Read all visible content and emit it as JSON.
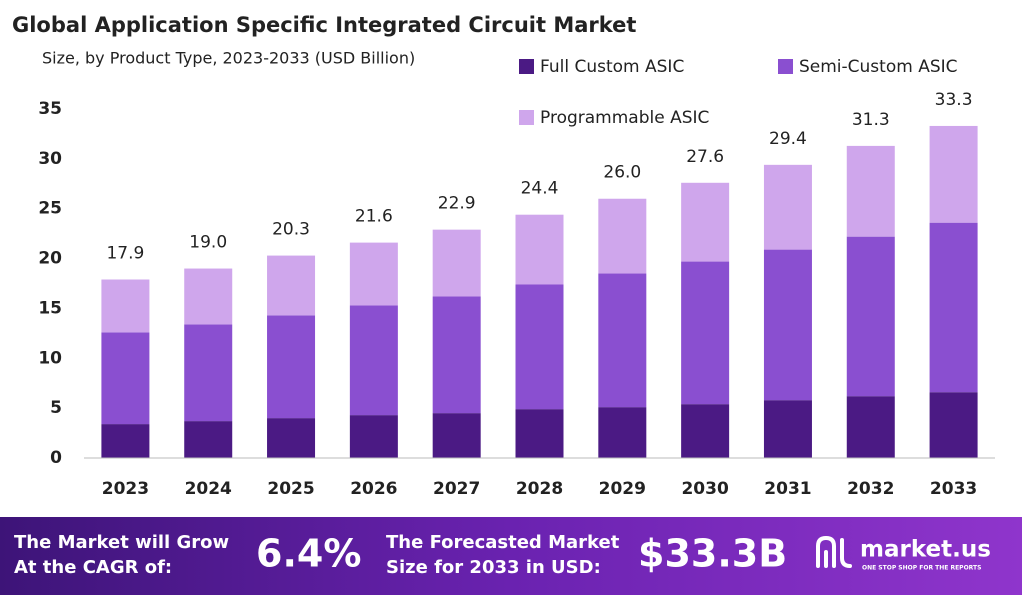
{
  "chart_data": {
    "type": "stacked_bar",
    "title": "Global Application Specific Integrated Circuit Market",
    "subtitle": "Size, by Product Type, 2023-2033 (USD Billion)",
    "categories": [
      "2023",
      "2024",
      "2025",
      "2026",
      "2027",
      "2028",
      "2029",
      "2030",
      "2031",
      "2032",
      "2033"
    ],
    "series": [
      {
        "name": "Full Custom ASIC",
        "color": "#4b1a84",
        "values": [
          3.4,
          3.7,
          4.0,
          4.3,
          4.5,
          4.9,
          5.1,
          5.4,
          5.8,
          6.2,
          6.6
        ]
      },
      {
        "name": "Semi-Custom ASIC",
        "color": "#8a4fd0",
        "values": [
          9.2,
          9.7,
          10.3,
          11.0,
          11.7,
          12.5,
          13.4,
          14.3,
          15.1,
          16.0,
          17.0
        ]
      },
      {
        "name": "Programmable ASIC",
        "color": "#cfa6ec",
        "values": [
          5.3,
          5.6,
          6.0,
          6.3,
          6.7,
          7.0,
          7.5,
          7.9,
          8.5,
          9.1,
          9.7
        ]
      }
    ],
    "totals": [
      17.9,
      19.0,
      20.3,
      21.6,
      22.9,
      24.4,
      26.0,
      27.6,
      29.4,
      31.3,
      33.3
    ],
    "total_labels": [
      "17.9",
      "19.0",
      "20.3",
      "21.6",
      "22.9",
      "24.4",
      "26.0",
      "27.6",
      "29.4",
      "31.3",
      "33.3"
    ],
    "ylim": [
      0,
      35
    ],
    "yticks": [
      0,
      5,
      10,
      15,
      20,
      25,
      30,
      35
    ],
    "grid": false
  },
  "footer": {
    "cagr_text": [
      "The Market will Grow",
      "At the CAGR of:"
    ],
    "cagr_value": "6.4%",
    "forecast_text": [
      "The Forecasted Market",
      "Size for 2033 in USD:"
    ],
    "forecast_value": "$33.3B",
    "brand": "market.us",
    "tagline": "ONE STOP SHOP FOR THE REPORTS"
  }
}
